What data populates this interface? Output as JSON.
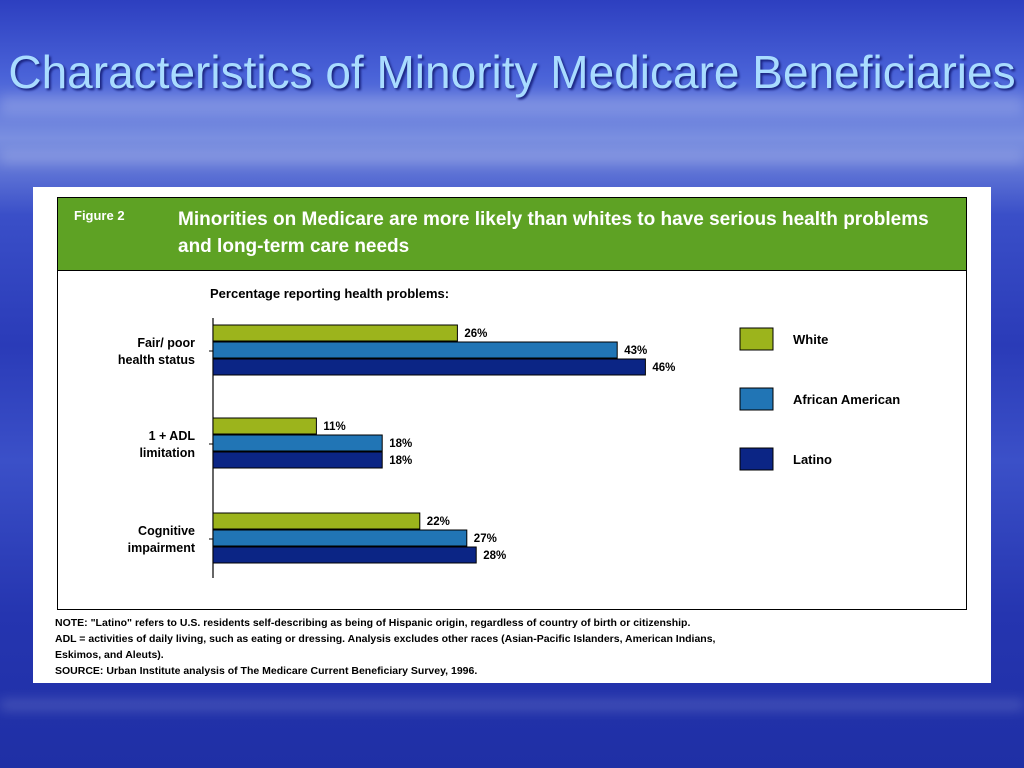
{
  "slide": {
    "title": "Characteristics of Minority Medicare Beneficiaries"
  },
  "figure": {
    "label": "Figure 2",
    "headline": "Minorities on Medicare are more likely than whites to have serious health problems and long-term care needs",
    "subtitle": "Percentage reporting health problems:"
  },
  "colors": {
    "banner": "#5ea224",
    "White": "#9cb41c",
    "African American": "#2175b5",
    "Latino": "#0b2585"
  },
  "chart_data": {
    "type": "bar",
    "orientation": "horizontal",
    "categories": [
      "Fair/ poor health status",
      "1 + ADL limitation",
      "Cognitive impairment"
    ],
    "series": [
      {
        "name": "White",
        "values": [
          26,
          11,
          22
        ],
        "labels": [
          "26%",
          "11%",
          "22%"
        ]
      },
      {
        "name": "African American",
        "values": [
          43,
          18,
          27
        ],
        "labels": [
          "43%",
          "18%",
          "27%"
        ]
      },
      {
        "name": "Latino",
        "values": [
          46,
          18,
          28
        ],
        "labels": [
          "46%",
          "18%",
          "28%"
        ]
      }
    ],
    "title": "Percentage reporting health problems:",
    "xlim": [
      0,
      50
    ],
    "grid": false,
    "legend_position": "right"
  },
  "notes": {
    "line1": "NOTE: \"Latino\" refers to U.S. residents self-describing as being of Hispanic origin, regardless of country of birth or citizenship.",
    "line2": "ADL = activities of daily living, such as eating or dressing. Analysis excludes other races (Asian-Pacific Islanders, American Indians,",
    "line3": "Eskimos, and Aleuts).",
    "line4": "SOURCE: Urban Institute analysis of The Medicare Current Beneficiary Survey, 1996."
  }
}
